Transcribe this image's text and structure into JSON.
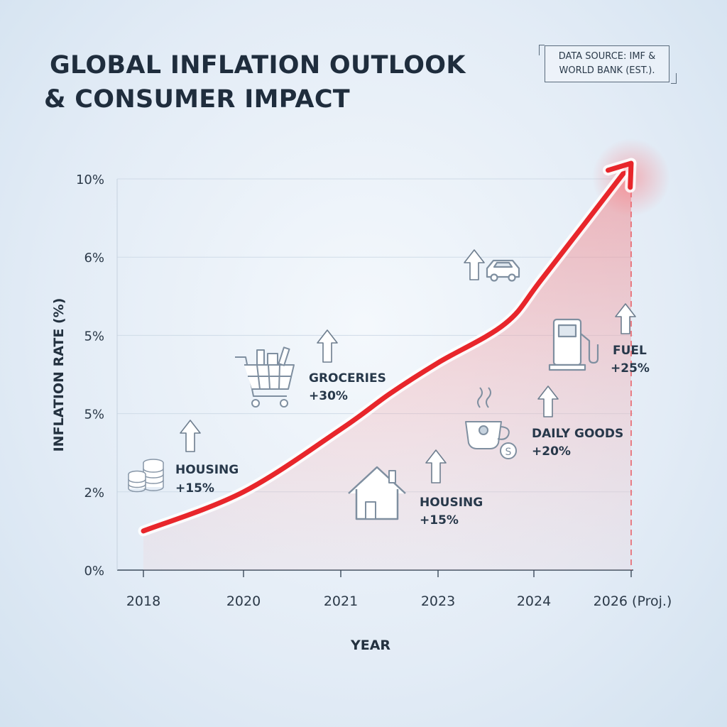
{
  "header": {
    "title_line1": "GLOBAL INFLATION OUTLOOK",
    "title_line2": "& CONSUMER IMPACT",
    "source_line1": "DATA SOURCE: IMF &",
    "source_line2": "WORLD BANK (EST.)."
  },
  "chart_data": {
    "type": "line",
    "title": "GLOBAL INFLATION OUTLOOK & CONSUMER IMPACT",
    "xlabel": "YEAR",
    "ylabel": "INFLATION RATE (%)",
    "y_tick_labels": [
      "0%",
      "2%",
      "5%",
      "5%",
      "6%",
      "10%"
    ],
    "x_tick_labels": [
      "2018",
      "2020",
      "2021",
      "2023",
      "2024",
      "2026 (Proj.)"
    ],
    "ylim": [
      0,
      10
    ],
    "grid": true,
    "area_fill": true,
    "series": [
      {
        "color": "#e8262b",
        "points": [
          {
            "x": 2018,
            "y": 1.0
          },
          {
            "x": 2020,
            "y": 2.0
          },
          {
            "x": 2021,
            "y": 3.6
          },
          {
            "x": 2022,
            "y": 4.5
          },
          {
            "x": 2023,
            "y": 5.3
          },
          {
            "x": 2023.7,
            "y": 6.3
          },
          {
            "x": 2024.2,
            "y": 7.5
          },
          {
            "x": 2026,
            "y": 10.4
          }
        ]
      }
    ],
    "projection_marker": {
      "x": 2026,
      "color": "#e8626a"
    },
    "annotations": [
      {
        "label": "HOUSING",
        "value": "+15%",
        "icon": "coins-icon",
        "x": 2019,
        "y": 2.3
      },
      {
        "label": "GROCERIES",
        "value": "+30%",
        "icon": "shopping-cart-icon",
        "x": 2021,
        "y": 4.9
      },
      {
        "label": "HOUSING",
        "value": "+15%",
        "icon": "house-icon",
        "x": 2022.5,
        "y": 1.6
      },
      {
        "label": "DAILY GOODS",
        "value": "+20%",
        "icon": "coffee-cup-icon",
        "x": 2024,
        "y": 3.6
      },
      {
        "label": "FUEL",
        "value": "+25%",
        "icon": "fuel-pump-icon",
        "x": 2025.3,
        "y": 5.8
      },
      {
        "label": "",
        "value": "",
        "icon": "car-icon",
        "x": 2023.3,
        "y": 7.0
      }
    ]
  }
}
